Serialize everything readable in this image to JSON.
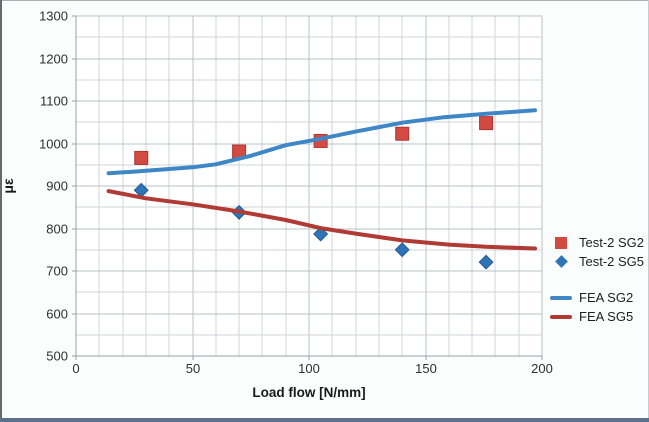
{
  "chart_data": {
    "type": "line+scatter",
    "title": "",
    "xlabel": "Load flow [N/mm]",
    "ylabel": "με",
    "x_axis": {
      "min": 0,
      "max": 200,
      "tick_step": 50,
      "grid_step": 10,
      "tick_labels": [
        "0",
        "50",
        "100",
        "150",
        "200"
      ]
    },
    "y_axis": {
      "min": 500,
      "max": 1300,
      "tick_step": 100,
      "grid_step": 50,
      "tick_labels": [
        "500",
        "600",
        "700",
        "800",
        "900",
        "1000",
        "1100",
        "1200",
        "1300"
      ]
    },
    "grid": "on",
    "legend_position": "right",
    "series": [
      {
        "id": "test2-sg2",
        "name": "Test-2 SG2",
        "type": "scatter",
        "marker": "square",
        "color": "#d24a42",
        "edge": "#b03831",
        "x": [
          28,
          70,
          105,
          140,
          176
        ],
        "y": [
          966,
          981,
          1006,
          1023,
          1048
        ]
      },
      {
        "id": "test2-sg5",
        "name": "Test-2 SG5",
        "type": "scatter",
        "marker": "diamond",
        "color": "#2f74b7",
        "edge": "#1f5a96",
        "x": [
          28,
          70,
          105,
          140,
          176
        ],
        "y": [
          890,
          838,
          787,
          750,
          721
        ]
      },
      {
        "id": "fea-sg2",
        "name": "FEA SG2",
        "type": "line",
        "color": "#3f86c6",
        "points": [
          [
            14,
            930
          ],
          [
            25,
            934
          ],
          [
            40,
            940
          ],
          [
            50,
            944
          ],
          [
            60,
            951
          ],
          [
            75,
            971
          ],
          [
            90,
            996
          ],
          [
            105,
            1011
          ],
          [
            120,
            1028
          ],
          [
            140,
            1049
          ],
          [
            158,
            1062
          ],
          [
            176,
            1070
          ],
          [
            197,
            1078
          ]
        ]
      },
      {
        "id": "fea-sg5",
        "name": "FEA SG5",
        "type": "line",
        "color": "#b03a34",
        "points": [
          [
            14,
            888
          ],
          [
            30,
            871
          ],
          [
            50,
            857
          ],
          [
            70,
            840
          ],
          [
            90,
            820
          ],
          [
            105,
            801
          ],
          [
            120,
            788
          ],
          [
            140,
            772
          ],
          [
            160,
            762
          ],
          [
            176,
            757
          ],
          [
            197,
            753
          ]
        ]
      }
    ]
  },
  "colors": {
    "page_bg": "#fbfcfc",
    "plot_bg": "#ffffff",
    "grid_minor": "#ccd4da",
    "grid_major": "#b7c0c6",
    "axis": "#98a1a8",
    "tick_text": "#303030",
    "title_text": "#191919",
    "frame_top": "#a7aeb4",
    "frame_left": "#626b72",
    "frame_right": "#c8ccce",
    "frame_bottom": "#5d7288"
  }
}
